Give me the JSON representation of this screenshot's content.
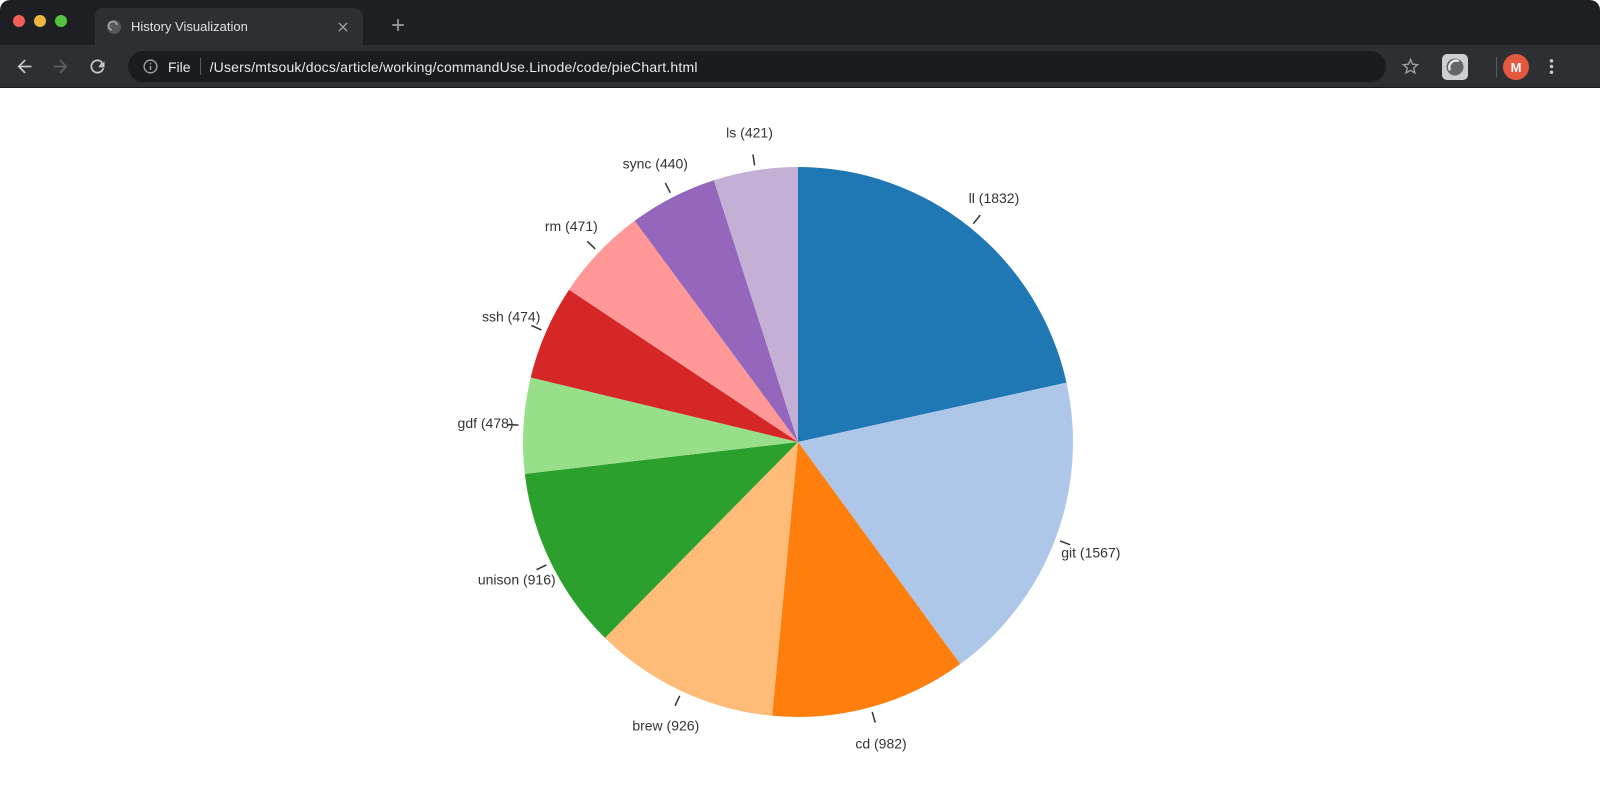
{
  "window": {
    "traffic_lights": {
      "close": "#f2605a",
      "minimize": "#ecb63e",
      "zoom": "#53c341"
    }
  },
  "tab_strip": {
    "tab": {
      "title": "History Visualization"
    }
  },
  "toolbar": {
    "scheme_label": "File",
    "url": "/Users/mtsouk/docs/article/working/commandUse.Linode/code/pieChart.html",
    "avatar": {
      "initial": "M",
      "color": "#e25940"
    }
  },
  "chart_data": {
    "type": "pie",
    "title": "",
    "legend": "none",
    "label_style": "outside labels with short radial leader ticks",
    "label_format": "{label} ({value})",
    "start_angle_deg": 0,
    "direction": "clockwise",
    "background": "#ffffff",
    "label_color": "#333333",
    "total": 8507,
    "labels": [
      "ll",
      "git",
      "cd",
      "brew",
      "unison",
      "gdf",
      "ssh",
      "rm",
      "sync",
      "ls"
    ],
    "values": [
      1832,
      1567,
      982,
      926,
      916,
      478,
      474,
      471,
      440,
      421
    ],
    "colors": [
      "#1f77b4",
      "#aec7e8",
      "#ff7f0e",
      "#ffbb78",
      "#2ca02c",
      "#98df8a",
      "#d62728",
      "#ff9896",
      "#9467bd",
      "#c5b0d5"
    ]
  }
}
